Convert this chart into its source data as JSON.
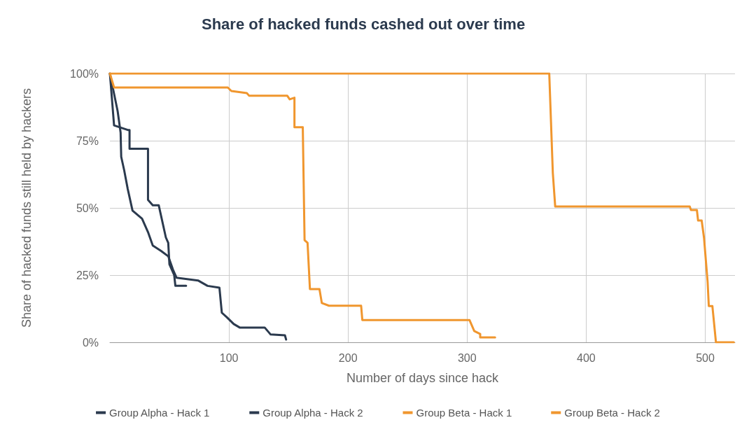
{
  "chart_data": {
    "type": "line",
    "title": "Share of hacked funds cashed out over time",
    "xlabel": "Number of days since hack",
    "ylabel": "Share of hacked funds still held by hackers",
    "xlim": [
      0,
      525
    ],
    "xticks": [
      100,
      200,
      300,
      400,
      500
    ],
    "ylim": [
      0,
      100
    ],
    "yticks": [
      {
        "value": 0,
        "label": "0%"
      },
      {
        "value": 25,
        "label": "25%"
      },
      {
        "value": 50,
        "label": "50%"
      },
      {
        "value": 75,
        "label": "75%"
      },
      {
        "value": 100,
        "label": "100%"
      }
    ],
    "grid": true,
    "legend": "bottom",
    "marker": "none",
    "line_style": "solid",
    "series": [
      {
        "name": "Group Alpha - Hack 1",
        "color": "#2b3a4e",
        "x": [
          0,
          3.5,
          15,
          16.5,
          16.5,
          32,
          32,
          36,
          41,
          47,
          49,
          50,
          54,
          55,
          64
        ],
        "values": [
          100,
          80.7,
          79,
          79,
          72,
          72,
          53,
          51,
          51,
          39,
          37,
          29,
          25,
          21,
          21
        ]
      },
      {
        "name": "Group Alpha - Hack 2",
        "color": "#2b3a4e",
        "x": [
          0,
          6.5,
          9,
          9.5,
          12,
          15,
          19,
          27,
          32,
          36,
          43,
          49,
          53,
          56,
          74,
          82,
          92,
          94,
          98,
          104,
          109,
          130,
          135,
          147,
          148
        ],
        "values": [
          100,
          86,
          78,
          69,
          64,
          57,
          49,
          46,
          41,
          36,
          34,
          32,
          27,
          24,
          23,
          21,
          20.3,
          11,
          9.4,
          6.8,
          5.5,
          5.5,
          2.9,
          2.6,
          1
        ]
      },
      {
        "name": "Group Beta - Hack 1",
        "color": "#f0962e",
        "x": [
          0,
          3.5,
          99,
          102,
          115,
          117,
          149,
          151,
          155,
          155,
          162,
          163.5,
          166,
          168,
          176,
          178,
          184,
          211,
          212,
          302,
          306,
          311,
          311,
          323.5
        ],
        "values": [
          100,
          94.8,
          94.8,
          93.5,
          92.7,
          91.7,
          91.7,
          90.4,
          91,
          80,
          80,
          38,
          37,
          19.8,
          19.8,
          14.6,
          13.6,
          13.6,
          8.3,
          8.3,
          4.2,
          3.1,
          1.8,
          1.8
        ]
      },
      {
        "name": "Group Beta - Hack 2",
        "color": "#f0962e",
        "x": [
          0,
          369,
          372,
          374,
          487,
          488,
          493,
          494,
          497,
          499,
          502,
          503,
          506,
          509,
          524
        ],
        "values": [
          100,
          100,
          63,
          50.5,
          50.5,
          49.2,
          49.2,
          45.3,
          45.3,
          38.8,
          22.4,
          13.5,
          13.5,
          0,
          0
        ]
      }
    ]
  }
}
